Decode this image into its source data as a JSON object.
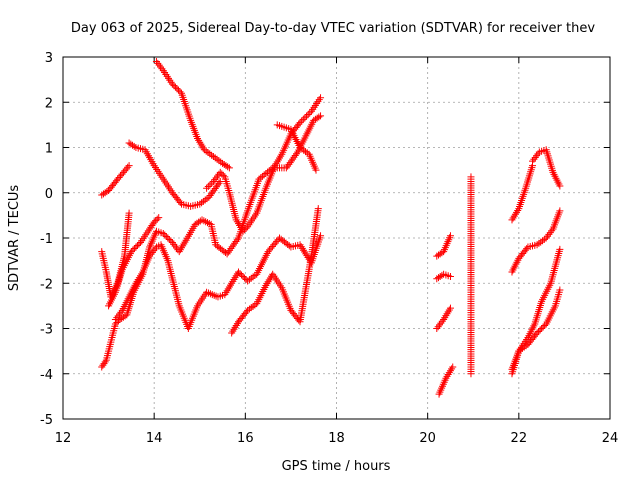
{
  "chart_data": {
    "type": "scatter",
    "title": "Day 063 of 2025, Sidereal Day-to-day VTEC variation (SDTVAR) for receiver thev",
    "xlabel": "GPS time / hours",
    "ylabel": "SDTVAR / TECUs",
    "xlim": [
      12,
      24
    ],
    "ylim": [
      -5,
      3
    ],
    "xticks": [
      "12",
      "14",
      "16",
      "18",
      "20",
      "22",
      "24"
    ],
    "yticks": [
      "3",
      "2",
      "1",
      "0",
      "-1",
      "-2",
      "-3",
      "-4",
      "-5"
    ],
    "grid": true,
    "marker": "+",
    "color": "#ff0000",
    "series": [
      {
        "x": [
          12.85,
          13.0,
          13.2,
          13.45
        ],
        "y": [
          -0.05,
          0.05,
          0.3,
          0.6
        ]
      },
      {
        "x": [
          12.85,
          12.95,
          13.05,
          13.2,
          13.35,
          13.45
        ],
        "y": [
          -1.3,
          -1.75,
          -2.3,
          -2.0,
          -1.4,
          -0.45
        ]
      },
      {
        "x": [
          12.85,
          12.95,
          13.05,
          13.15,
          13.25,
          13.4,
          13.55,
          13.75,
          13.9,
          14.05,
          14.2,
          14.4,
          14.55,
          14.7,
          14.9,
          15.05,
          15.25,
          15.35,
          15.6,
          15.85,
          16.05,
          16.3,
          16.6,
          16.9,
          17.15,
          17.35,
          17.5,
          17.65
        ],
        "y": [
          -3.85,
          -3.7,
          -3.3,
          -2.9,
          -2.8,
          -2.7,
          -2.2,
          -1.8,
          -1.2,
          -0.85,
          -0.9,
          -1.1,
          -1.3,
          -1.05,
          -0.7,
          -0.6,
          -0.7,
          -1.15,
          -1.35,
          -1.0,
          -0.4,
          0.3,
          0.55,
          0.55,
          0.9,
          1.3,
          1.6,
          1.7
        ]
      },
      {
        "x": [
          13.0,
          13.15,
          13.3,
          13.5,
          13.7,
          13.9,
          14.0,
          14.1
        ],
        "y": [
          -2.5,
          -2.2,
          -1.7,
          -1.3,
          -1.1,
          -0.8,
          -0.65,
          -0.55
        ]
      },
      {
        "x": [
          13.15,
          13.3,
          13.45,
          13.6,
          13.75,
          13.9,
          14.05,
          14.15,
          14.3,
          14.55,
          14.75,
          14.95,
          15.15,
          15.4,
          15.55,
          15.7,
          15.85,
          16.05,
          16.25,
          16.5,
          16.75,
          17.0,
          17.2,
          17.45,
          17.65
        ],
        "y": [
          -2.8,
          -2.6,
          -2.3,
          -2.0,
          -1.75,
          -1.4,
          -1.2,
          -1.15,
          -1.5,
          -2.5,
          -3.0,
          -2.5,
          -2.2,
          -2.3,
          -2.25,
          -2.0,
          -1.75,
          -1.95,
          -1.8,
          -1.3,
          -1.0,
          -1.2,
          -1.15,
          -1.55,
          -0.95
        ]
      },
      {
        "x": [
          13.45,
          13.6,
          13.8,
          14.0,
          14.2,
          14.4,
          14.6,
          14.8,
          15.0,
          15.2,
          15.45
        ],
        "y": [
          1.1,
          1.0,
          0.95,
          0.6,
          0.3,
          0.0,
          -0.25,
          -0.3,
          -0.25,
          -0.1,
          0.25
        ]
      },
      {
        "x": [
          14.05,
          14.2,
          14.4,
          14.6,
          14.8,
          14.95,
          15.1,
          15.3,
          15.5,
          15.65
        ],
        "y": [
          2.9,
          2.7,
          2.4,
          2.2,
          1.6,
          1.2,
          0.95,
          0.8,
          0.65,
          0.55
        ]
      },
      {
        "x": [
          15.15,
          15.3,
          15.45,
          15.55,
          15.65,
          15.8,
          15.95,
          16.05,
          16.25,
          16.45,
          16.65,
          16.8,
          17.0,
          17.2,
          17.45,
          17.65
        ],
        "y": [
          0.1,
          0.25,
          0.45,
          0.35,
          0.0,
          -0.6,
          -0.85,
          -0.75,
          -0.45,
          0.1,
          0.6,
          0.85,
          1.3,
          1.55,
          1.8,
          2.1
        ]
      },
      {
        "x": [
          15.7,
          15.85,
          16.05,
          16.25,
          16.45,
          16.6,
          16.8,
          17.0,
          17.2,
          17.45,
          17.6
        ],
        "y": [
          -3.1,
          -2.85,
          -2.6,
          -2.45,
          -2.05,
          -1.8,
          -2.1,
          -2.6,
          -2.85,
          -1.4,
          -0.35
        ]
      },
      {
        "x": [
          16.7,
          16.85,
          17.0,
          17.2,
          17.4,
          17.55
        ],
        "y": [
          1.5,
          1.45,
          1.4,
          1.0,
          0.85,
          0.5
        ]
      },
      {
        "x": [
          20.2,
          20.35,
          20.5
        ],
        "y": [
          -1.4,
          -1.3,
          -0.95
        ]
      },
      {
        "x": [
          20.2,
          20.35,
          20.5
        ],
        "y": [
          -1.9,
          -1.8,
          -1.85
        ]
      },
      {
        "x": [
          20.2,
          20.35,
          20.5
        ],
        "y": [
          -3.0,
          -2.8,
          -2.55
        ]
      },
      {
        "x": [
          20.25,
          20.4,
          20.55
        ],
        "y": [
          -4.45,
          -4.1,
          -3.85
        ]
      },
      {
        "x": [
          20.95,
          20.95,
          20.95,
          20.95,
          20.95,
          20.95,
          20.95
        ],
        "y": [
          0.35,
          0.2,
          -0.95,
          -2.0,
          -2.85,
          -3.8,
          -4.0
        ]
      },
      {
        "x": [
          21.85,
          22.0,
          22.15,
          22.3
        ],
        "y": [
          -0.6,
          -0.35,
          0.1,
          0.6
        ]
      },
      {
        "x": [
          22.3,
          22.45,
          22.6,
          22.75,
          22.9
        ],
        "y": [
          0.7,
          0.9,
          0.95,
          0.45,
          0.15
        ]
      },
      {
        "x": [
          21.85,
          22.0,
          22.2,
          22.4,
          22.6,
          22.75,
          22.9
        ],
        "y": [
          -1.75,
          -1.45,
          -1.2,
          -1.15,
          -1.0,
          -0.8,
          -0.4
        ]
      },
      {
        "x": [
          21.85,
          22.0,
          22.2,
          22.35,
          22.5,
          22.7,
          22.9
        ],
        "y": [
          -3.9,
          -3.5,
          -3.2,
          -2.9,
          -2.4,
          -2.0,
          -1.25
        ]
      },
      {
        "x": [
          21.85,
          22.0,
          22.2,
          22.4,
          22.6,
          22.8,
          22.9
        ],
        "y": [
          -4.0,
          -3.5,
          -3.35,
          -3.1,
          -2.9,
          -2.5,
          -2.15
        ]
      }
    ]
  }
}
